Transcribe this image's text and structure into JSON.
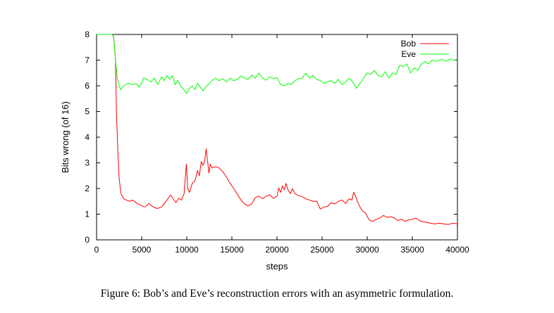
{
  "caption": "Figure 6: Bob’s and Eve’s reconstruction errors with an asymmetric formulation.",
  "chart_data": {
    "type": "line",
    "title": "",
    "xlabel": "steps",
    "ylabel": "Bits wrong (of 16)",
    "xlim": [
      0,
      40000
    ],
    "ylim": [
      0,
      8
    ],
    "xticks": [
      0,
      5000,
      10000,
      15000,
      20000,
      25000,
      30000,
      35000,
      40000
    ],
    "yticks": [
      0,
      1,
      2,
      3,
      4,
      5,
      6,
      7,
      8
    ],
    "grid": false,
    "legend_position": "top-right",
    "series": [
      {
        "name": "Bob",
        "color": "#ff0000",
        "points": [
          [
            0,
            8
          ],
          [
            1700,
            8
          ],
          [
            1900,
            7.9
          ],
          [
            2100,
            7.0
          ],
          [
            2200,
            5.0
          ],
          [
            2350,
            3.5
          ],
          [
            2500,
            2.4
          ],
          [
            2700,
            1.8
          ],
          [
            3000,
            1.6
          ],
          [
            3300,
            1.55
          ],
          [
            3700,
            1.5
          ],
          [
            4000,
            1.55
          ],
          [
            4500,
            1.42
          ],
          [
            5000,
            1.32
          ],
          [
            5400,
            1.28
          ],
          [
            5800,
            1.42
          ],
          [
            6200,
            1.3
          ],
          [
            6700,
            1.22
          ],
          [
            7200,
            1.28
          ],
          [
            7700,
            1.5
          ],
          [
            8200,
            1.75
          ],
          [
            8500,
            1.6
          ],
          [
            8800,
            1.45
          ],
          [
            9100,
            1.62
          ],
          [
            9400,
            1.55
          ],
          [
            9700,
            1.8
          ],
          [
            9950,
            2.95
          ],
          [
            10100,
            2.0
          ],
          [
            10300,
            1.85
          ],
          [
            10600,
            2.2
          ],
          [
            10900,
            2.3
          ],
          [
            11200,
            2.7
          ],
          [
            11400,
            2.5
          ],
          [
            11600,
            3.05
          ],
          [
            11800,
            2.9
          ],
          [
            12000,
            3.1
          ],
          [
            12150,
            3.55
          ],
          [
            12300,
            3.1
          ],
          [
            12450,
            2.6
          ],
          [
            12600,
            2.95
          ],
          [
            12800,
            2.8
          ],
          [
            13200,
            2.85
          ],
          [
            13600,
            2.8
          ],
          [
            14000,
            2.65
          ],
          [
            14400,
            2.45
          ],
          [
            14800,
            2.2
          ],
          [
            15200,
            2.0
          ],
          [
            15600,
            1.78
          ],
          [
            16000,
            1.55
          ],
          [
            16400,
            1.4
          ],
          [
            16800,
            1.32
          ],
          [
            17200,
            1.4
          ],
          [
            17600,
            1.65
          ],
          [
            18000,
            1.7
          ],
          [
            18400,
            1.6
          ],
          [
            18800,
            1.7
          ],
          [
            19200,
            1.75
          ],
          [
            19600,
            1.62
          ],
          [
            20000,
            1.7
          ],
          [
            20200,
            2.02
          ],
          [
            20400,
            1.85
          ],
          [
            20600,
            2.1
          ],
          [
            20800,
            1.95
          ],
          [
            21000,
            2.2
          ],
          [
            21200,
            1.95
          ],
          [
            21500,
            1.8
          ],
          [
            21700,
            2.0
          ],
          [
            22000,
            1.8
          ],
          [
            22400,
            1.72
          ],
          [
            22800,
            1.68
          ],
          [
            23200,
            1.6
          ],
          [
            23600,
            1.55
          ],
          [
            24000,
            1.5
          ],
          [
            24400,
            1.5
          ],
          [
            24800,
            1.2
          ],
          [
            25200,
            1.28
          ],
          [
            25600,
            1.3
          ],
          [
            26000,
            1.45
          ],
          [
            26400,
            1.4
          ],
          [
            26800,
            1.5
          ],
          [
            27200,
            1.55
          ],
          [
            27600,
            1.42
          ],
          [
            28000,
            1.6
          ],
          [
            28300,
            1.55
          ],
          [
            28500,
            1.85
          ],
          [
            28700,
            1.7
          ],
          [
            29000,
            1.42
          ],
          [
            29400,
            1.15
          ],
          [
            29800,
            1.05
          ],
          [
            30200,
            0.78
          ],
          [
            30600,
            0.72
          ],
          [
            31000,
            0.8
          ],
          [
            31400,
            0.85
          ],
          [
            31800,
            0.95
          ],
          [
            32200,
            0.88
          ],
          [
            32600,
            0.9
          ],
          [
            33000,
            0.85
          ],
          [
            33400,
            0.75
          ],
          [
            33800,
            0.8
          ],
          [
            34200,
            0.72
          ],
          [
            34600,
            0.78
          ],
          [
            35000,
            0.8
          ],
          [
            35400,
            0.85
          ],
          [
            35800,
            0.75
          ],
          [
            36200,
            0.7
          ],
          [
            36600,
            0.68
          ],
          [
            37000,
            0.65
          ],
          [
            37500,
            0.62
          ],
          [
            38000,
            0.65
          ],
          [
            38500,
            0.62
          ],
          [
            39000,
            0.6
          ],
          [
            39500,
            0.65
          ],
          [
            40000,
            0.62
          ]
        ]
      },
      {
        "name": "Eve",
        "color": "#00ff00",
        "points": [
          [
            0,
            8
          ],
          [
            1700,
            8
          ],
          [
            1900,
            7.9
          ],
          [
            2100,
            7.0
          ],
          [
            2300,
            6.3
          ],
          [
            2500,
            6.0
          ],
          [
            2700,
            5.85
          ],
          [
            3000,
            6.0
          ],
          [
            3500,
            6.1
          ],
          [
            4000,
            6.05
          ],
          [
            4400,
            6.08
          ],
          [
            4700,
            5.95
          ],
          [
            5000,
            6.1
          ],
          [
            5200,
            6.3
          ],
          [
            5600,
            6.25
          ],
          [
            6000,
            6.15
          ],
          [
            6400,
            6.3
          ],
          [
            6800,
            6.05
          ],
          [
            7200,
            6.35
          ],
          [
            7500,
            6.2
          ],
          [
            7800,
            6.4
          ],
          [
            8100,
            6.25
          ],
          [
            8400,
            6.4
          ],
          [
            8700,
            6.05
          ],
          [
            9000,
            6.2
          ],
          [
            9400,
            5.95
          ],
          [
            9800,
            5.8
          ],
          [
            10000,
            5.7
          ],
          [
            10300,
            5.9
          ],
          [
            10600,
            6.0
          ],
          [
            10900,
            5.85
          ],
          [
            11200,
            6.1
          ],
          [
            11500,
            5.95
          ],
          [
            11800,
            5.8
          ],
          [
            12100,
            5.95
          ],
          [
            12400,
            6.05
          ],
          [
            12800,
            6.2
          ],
          [
            13200,
            6.3
          ],
          [
            13600,
            6.2
          ],
          [
            14000,
            6.28
          ],
          [
            14400,
            6.15
          ],
          [
            14800,
            6.3
          ],
          [
            15200,
            6.2
          ],
          [
            15600,
            6.25
          ],
          [
            16000,
            6.38
          ],
          [
            16400,
            6.3
          ],
          [
            16800,
            6.25
          ],
          [
            17200,
            6.42
          ],
          [
            17600,
            6.3
          ],
          [
            18000,
            6.5
          ],
          [
            18400,
            6.3
          ],
          [
            18800,
            6.22
          ],
          [
            19200,
            6.35
          ],
          [
            19600,
            6.28
          ],
          [
            20000,
            6.32
          ],
          [
            20400,
            6.05
          ],
          [
            20800,
            6.0
          ],
          [
            21200,
            6.1
          ],
          [
            21600,
            6.05
          ],
          [
            22000,
            6.2
          ],
          [
            22400,
            6.28
          ],
          [
            22800,
            6.3
          ],
          [
            23200,
            6.5
          ],
          [
            23600,
            6.3
          ],
          [
            24000,
            6.4
          ],
          [
            24400,
            6.25
          ],
          [
            24800,
            6.2
          ],
          [
            25200,
            6.1
          ],
          [
            25600,
            6.15
          ],
          [
            26000,
            6.2
          ],
          [
            26400,
            6.1
          ],
          [
            26800,
            6.25
          ],
          [
            27200,
            6.05
          ],
          [
            27600,
            6.15
          ],
          [
            28000,
            6.3
          ],
          [
            28400,
            6.15
          ],
          [
            28800,
            5.9
          ],
          [
            29200,
            6.1
          ],
          [
            29600,
            6.3
          ],
          [
            30000,
            6.5
          ],
          [
            30400,
            6.45
          ],
          [
            30800,
            6.6
          ],
          [
            31200,
            6.4
          ],
          [
            31600,
            6.35
          ],
          [
            32000,
            6.55
          ],
          [
            32400,
            6.3
          ],
          [
            32800,
            6.5
          ],
          [
            33200,
            6.45
          ],
          [
            33600,
            6.8
          ],
          [
            34000,
            6.75
          ],
          [
            34400,
            6.85
          ],
          [
            34800,
            6.5
          ],
          [
            35200,
            6.7
          ],
          [
            35600,
            6.6
          ],
          [
            36000,
            6.85
          ],
          [
            36400,
            6.95
          ],
          [
            36800,
            6.85
          ],
          [
            37200,
            7.0
          ],
          [
            37600,
            6.95
          ],
          [
            38000,
            7.0
          ],
          [
            38400,
            7.02
          ],
          [
            38800,
            6.95
          ],
          [
            39200,
            7.05
          ],
          [
            39600,
            7.0
          ],
          [
            40000,
            7.02
          ]
        ]
      }
    ]
  }
}
